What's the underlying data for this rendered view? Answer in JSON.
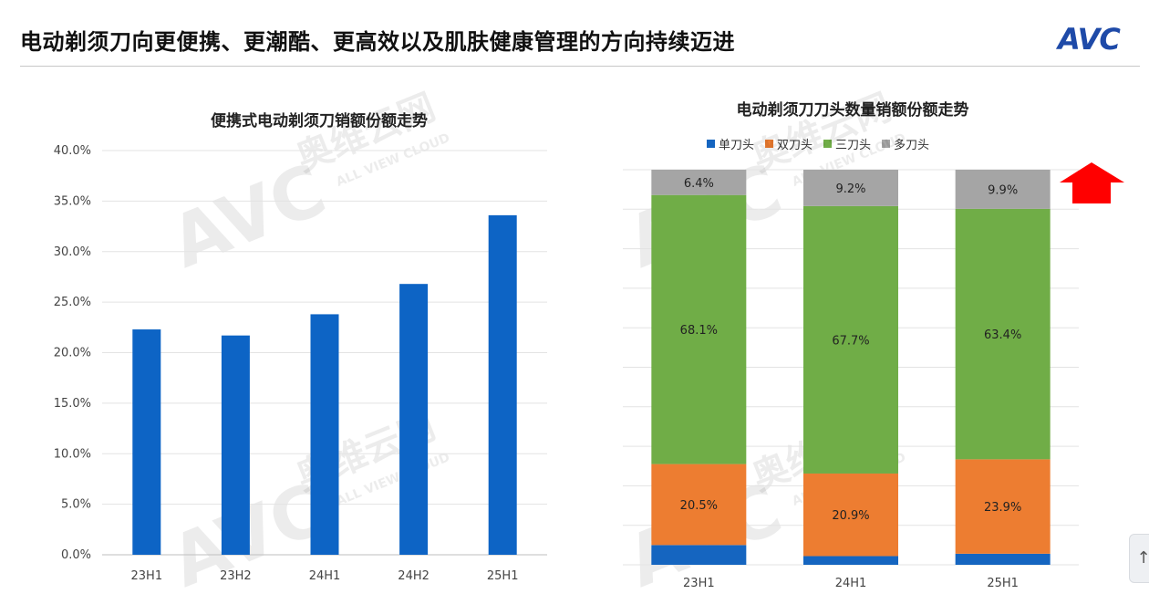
{
  "page": {
    "title": "电动剃须刀向更便携、更潮酷、更高效以及肌肤健康管理的方向持续迈进",
    "logo_text": "AVC",
    "watermark_cn": "奥维云网",
    "watermark_en": "ALL VIEW CLOUD",
    "scroll_icon": "arrow-up-icon",
    "trend_arrow_icon": "red-up-arrow-icon"
  },
  "colors": {
    "bar_blue": "#0D64C5",
    "single": "#1565C0",
    "double": "#ED7D31",
    "triple": "#70AD47",
    "multi": "#A5A5A5",
    "arrow": "#FF0000"
  },
  "chart_data": [
    {
      "type": "bar",
      "title": "便携式电动剃须刀销额份额走势",
      "categories": [
        "23H1",
        "23H2",
        "24H1",
        "24H2",
        "25H1"
      ],
      "values": [
        22.3,
        21.7,
        23.8,
        26.8,
        33.6
      ],
      "ylim": [
        0,
        40
      ],
      "yticks": [
        "0.0%",
        "5.0%",
        "10.0%",
        "15.0%",
        "20.0%",
        "25.0%",
        "30.0%",
        "35.0%",
        "40.0%"
      ],
      "ytick_values": [
        0,
        5,
        10,
        15,
        20,
        25,
        30,
        35,
        40
      ],
      "unit": "%",
      "grid": true
    },
    {
      "type": "bar",
      "stacked": true,
      "title": "电动剃须刀刀头数量销额份额走势",
      "categories": [
        "23H1",
        "24H1",
        "25H1"
      ],
      "series": [
        {
          "name": "单刀头",
          "values": [
            5.0,
            2.2,
            2.8
          ]
        },
        {
          "name": "双刀头",
          "values": [
            20.5,
            20.9,
            23.9
          ]
        },
        {
          "name": "三刀头",
          "values": [
            68.1,
            67.7,
            63.4
          ]
        },
        {
          "name": "多刀头",
          "values": [
            6.4,
            9.2,
            9.9
          ]
        }
      ],
      "labels": [
        [
          "",
          "20.5%",
          "68.1%",
          "6.4%"
        ],
        [
          "",
          "20.9%",
          "67.7%",
          "9.2%"
        ],
        [
          "",
          "23.9%",
          "63.4%",
          "9.9%"
        ]
      ],
      "ylim": [
        0,
        100
      ],
      "legend_position": "top",
      "grid": true
    }
  ]
}
